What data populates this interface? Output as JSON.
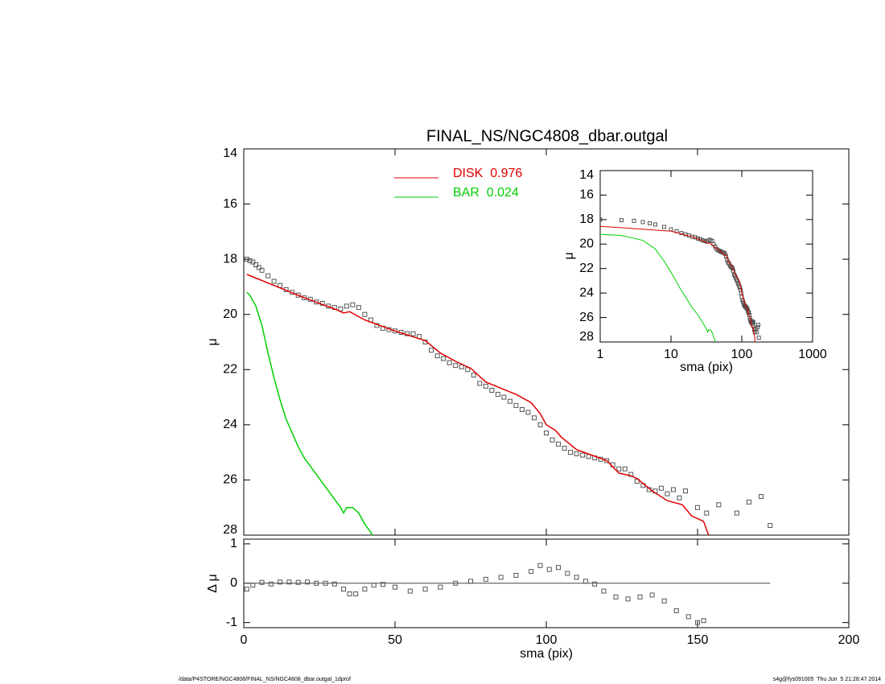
{
  "chart_data": [
    {
      "type": "line",
      "title": "FINAL_NS/NGC4808_dbar.outgal",
      "ylabel": "μ",
      "xlim": [
        0,
        200
      ],
      "ylim": [
        14,
        28
      ],
      "invert_y": true,
      "yticks": [
        14,
        16,
        18,
        20,
        22,
        24,
        26,
        28
      ],
      "series": [
        {
          "marker": "square",
          "color": "#555555",
          "x": [
            1,
            2,
            3,
            4,
            5,
            6,
            8,
            10,
            12,
            14,
            16,
            18,
            20,
            22,
            24,
            26,
            28,
            30,
            32,
            34,
            36,
            38,
            40,
            42,
            44,
            46,
            48,
            50,
            52,
            54,
            56,
            58,
            60,
            62,
            64,
            66,
            68,
            70,
            72,
            74,
            76,
            78,
            80,
            82,
            84,
            86,
            88,
            90,
            92,
            94,
            96,
            98,
            100,
            102,
            104,
            106,
            108,
            110,
            112,
            114,
            116,
            118,
            120,
            122,
            124,
            126,
            128,
            130,
            132,
            134,
            136,
            138,
            140,
            142,
            144,
            146,
            150,
            153,
            157,
            163,
            167,
            171,
            174
          ],
          "values": [
            18.0,
            18.05,
            18.1,
            18.2,
            18.3,
            18.4,
            18.6,
            18.8,
            18.95,
            19.1,
            19.2,
            19.3,
            19.4,
            19.45,
            19.55,
            19.6,
            19.7,
            19.75,
            19.8,
            19.7,
            19.65,
            19.75,
            20.0,
            20.2,
            20.4,
            20.5,
            20.55,
            20.6,
            20.65,
            20.7,
            20.7,
            20.8,
            21.0,
            21.3,
            21.5,
            21.6,
            21.75,
            21.85,
            21.9,
            22.0,
            22.2,
            22.5,
            22.6,
            22.75,
            22.9,
            23.0,
            23.15,
            23.3,
            23.45,
            23.55,
            23.75,
            24.0,
            24.3,
            24.55,
            24.7,
            24.85,
            25.0,
            25.05,
            25.1,
            25.15,
            25.2,
            25.25,
            25.3,
            25.45,
            25.6,
            25.6,
            25.8,
            26.05,
            26.2,
            26.35,
            26.4,
            26.3,
            26.5,
            26.35,
            26.65,
            26.4,
            27.0,
            27.2,
            26.9,
            27.2,
            26.8,
            26.6,
            27.65
          ]
        },
        {
          "name": "DISK  0.976",
          "color": "#e00000",
          "x": [
            1,
            10,
            20,
            30,
            33,
            35,
            40,
            50,
            60,
            65,
            70,
            75,
            80,
            90,
            95,
            98,
            100,
            103,
            105,
            110,
            120,
            124,
            126,
            128,
            130,
            135,
            140,
            145,
            148,
            152,
            154
          ],
          "values": [
            18.55,
            18.95,
            19.4,
            19.8,
            19.95,
            19.9,
            20.2,
            20.6,
            20.95,
            21.4,
            21.7,
            21.95,
            22.45,
            22.9,
            23.2,
            23.6,
            24.0,
            24.2,
            24.45,
            24.9,
            25.3,
            25.75,
            25.8,
            25.85,
            25.95,
            26.4,
            26.75,
            26.9,
            27.3,
            27.5,
            28.1
          ]
        },
        {
          "name": "BAR  0.024",
          "color": "#00d000",
          "x": [
            1,
            2,
            4,
            6,
            8,
            10,
            12,
            14,
            16,
            18,
            20,
            24,
            28,
            32,
            33,
            34,
            36,
            38,
            40,
            42,
            43
          ],
          "values": [
            19.2,
            19.3,
            19.7,
            20.4,
            21.4,
            22.3,
            23.1,
            23.8,
            24.3,
            24.8,
            25.2,
            25.8,
            26.4,
            27.0,
            27.2,
            27.0,
            27.0,
            27.2,
            27.6,
            27.9,
            28.1
          ]
        }
      ]
    },
    {
      "type": "scatter",
      "ylabel": "Δ μ",
      "xlabel": "sma (pix)",
      "xlim": [
        0,
        200
      ],
      "xticks": [
        0,
        50,
        100,
        150,
        200
      ],
      "ylim": [
        -1.13,
        1.12
      ],
      "yticks": [
        -1,
        0,
        1
      ],
      "reference_line": {
        "y": 0,
        "x": [
          0,
          174
        ]
      },
      "series": [
        {
          "marker": "square",
          "color": "#555555",
          "x": [
            1,
            3,
            6,
            9,
            12,
            15,
            18,
            21,
            24,
            27,
            30,
            33,
            35,
            37,
            40,
            43,
            46,
            50,
            55,
            60,
            65,
            70,
            75,
            80,
            85,
            90,
            95,
            98,
            101,
            104,
            107,
            110,
            113,
            116,
            119,
            123,
            127,
            131,
            135,
            139,
            143,
            147,
            150,
            152
          ],
          "values": [
            -0.15,
            -0.05,
            0.02,
            -0.02,
            0.03,
            0.03,
            0.02,
            0.03,
            0.0,
            0.0,
            -0.02,
            -0.15,
            -0.27,
            -0.27,
            -0.15,
            -0.05,
            -0.03,
            -0.1,
            -0.2,
            -0.15,
            -0.1,
            0.0,
            0.05,
            0.1,
            0.15,
            0.2,
            0.3,
            0.45,
            0.35,
            0.4,
            0.25,
            0.15,
            0.05,
            -0.02,
            -0.2,
            -0.35,
            -0.4,
            -0.35,
            -0.3,
            -0.45,
            -0.7,
            -0.85,
            -1.0,
            -0.95
          ]
        }
      ]
    },
    {
      "type": "line",
      "xscale": "log",
      "xlabel": "sma (pix)",
      "ylabel": "μ",
      "xlim": [
        1,
        1000
      ],
      "xticks": [
        1,
        10,
        100,
        1000
      ],
      "ylim": [
        14,
        28
      ],
      "invert_y": true,
      "yticks": [
        14,
        16,
        18,
        20,
        22,
        24,
        26,
        28
      ]
    }
  ],
  "footer": {
    "left": "/data/P4STORE/NGC4808/FINAL_NS/NGC4808_dbar.outgal_1dprof",
    "right": "s4g@fys091005  Thu Jun  5 21:28:47 2014"
  }
}
